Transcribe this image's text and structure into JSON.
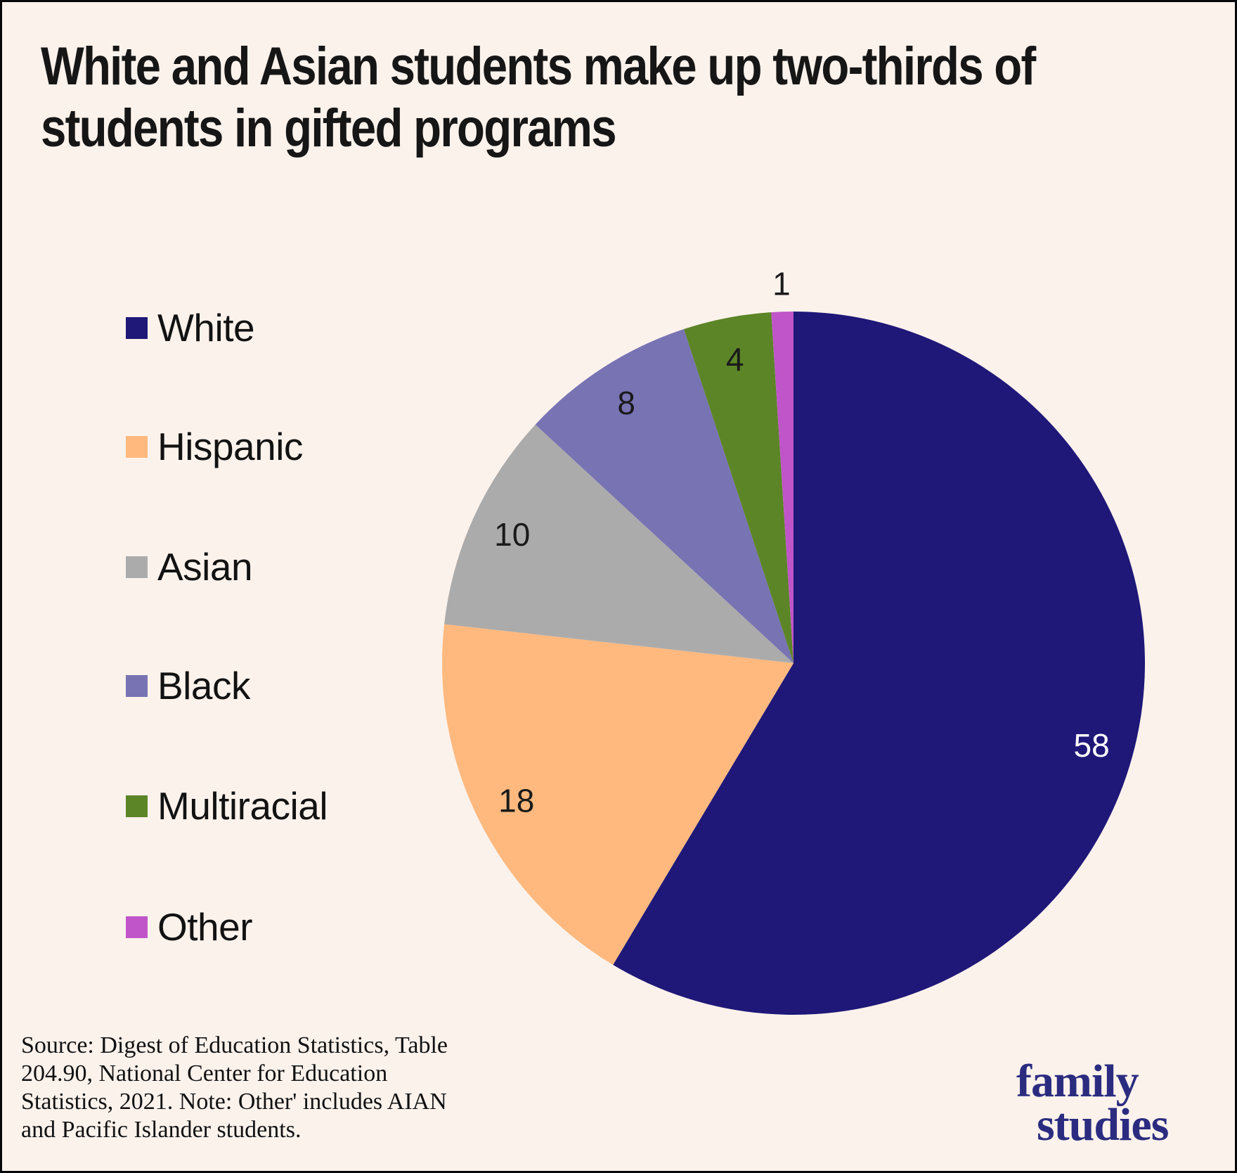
{
  "header": {
    "title_line1": "White and Asian students make up two-thirds of",
    "title_line2": "students in gifted programs"
  },
  "chart_data": {
    "type": "pie",
    "title": "White and Asian students make up two-thirds of students in gifted programs",
    "legend_position": "left",
    "start_angle": "12 o'clock",
    "direction": "clockwise",
    "background_color": "#FCF2EC",
    "slices": [
      {
        "label": "White",
        "value": 58,
        "color": "#1F1878",
        "label_color": "#FFFFFF"
      },
      {
        "label": "Hispanic",
        "value": 18,
        "color": "#FFB97E",
        "label_color": "#1A1A1A"
      },
      {
        "label": "Asian",
        "value": 10,
        "color": "#ABABAB",
        "label_color": "#1A1A1A"
      },
      {
        "label": "Black",
        "value": 8,
        "color": "#7873B3",
        "label_color": "#1A1A1A"
      },
      {
        "label": "Multiracial",
        "value": 4,
        "color": "#5C8527",
        "label_color": "#1A1A1A"
      },
      {
        "label": "Other",
        "value": 1,
        "color": "#BF55C9",
        "label_color": "#1A1A1A"
      }
    ]
  },
  "footer": {
    "source_lines": [
      "Source: Digest of Education Statistics, Table",
      "204.90, National Center for Education",
      "Statistics, 2021. Note: Other' includes AIAN",
      "and Pacific Islander students."
    ],
    "logo_line1": "family",
    "logo_line2": "studies",
    "logo_color": "#2B2C80"
  }
}
